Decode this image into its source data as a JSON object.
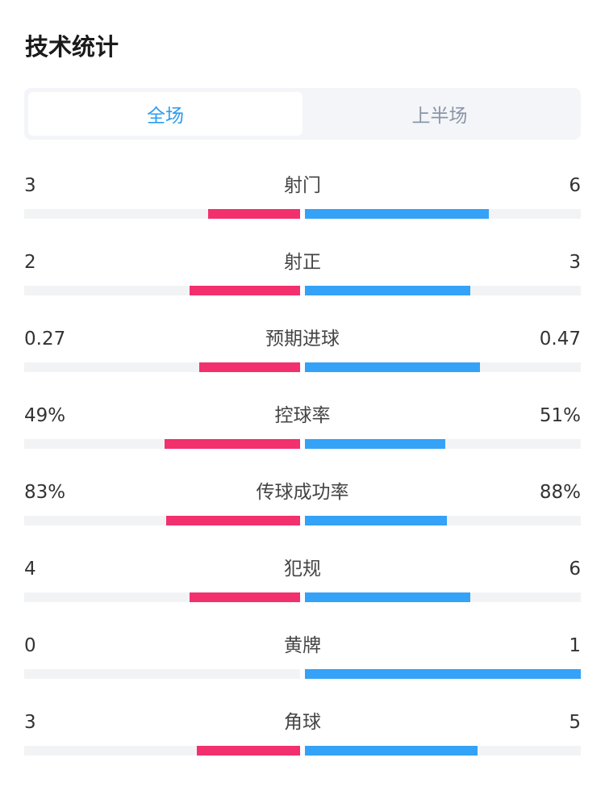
{
  "header": {
    "title": "技术统计"
  },
  "tabs": [
    {
      "label": "全场",
      "active": true
    },
    {
      "label": "上半场",
      "active": false
    }
  ],
  "colors": {
    "home": "#f2306e",
    "away": "#34a2f7",
    "track": "#f2f3f5",
    "active_tab": "#2b9cf0"
  },
  "stats": [
    {
      "name": "射门",
      "home": "3",
      "away": "6",
      "home_fill": 0.333,
      "away_fill": 0.667
    },
    {
      "name": "射正",
      "home": "2",
      "away": "3",
      "home_fill": 0.4,
      "away_fill": 0.6
    },
    {
      "name": "预期进球",
      "home": "0.27",
      "away": "0.47",
      "home_fill": 0.365,
      "away_fill": 0.635
    },
    {
      "name": "控球率",
      "home": "49%",
      "away": "51%",
      "home_fill": 0.49,
      "away_fill": 0.51
    },
    {
      "name": "传球成功率",
      "home": "83%",
      "away": "88%",
      "home_fill": 0.485,
      "away_fill": 0.515
    },
    {
      "name": "犯规",
      "home": "4",
      "away": "6",
      "home_fill": 0.4,
      "away_fill": 0.6
    },
    {
      "name": "黄牌",
      "home": "0",
      "away": "1",
      "home_fill": 0.0,
      "away_fill": 1.0
    },
    {
      "name": "角球",
      "home": "3",
      "away": "5",
      "home_fill": 0.375,
      "away_fill": 0.625
    }
  ]
}
